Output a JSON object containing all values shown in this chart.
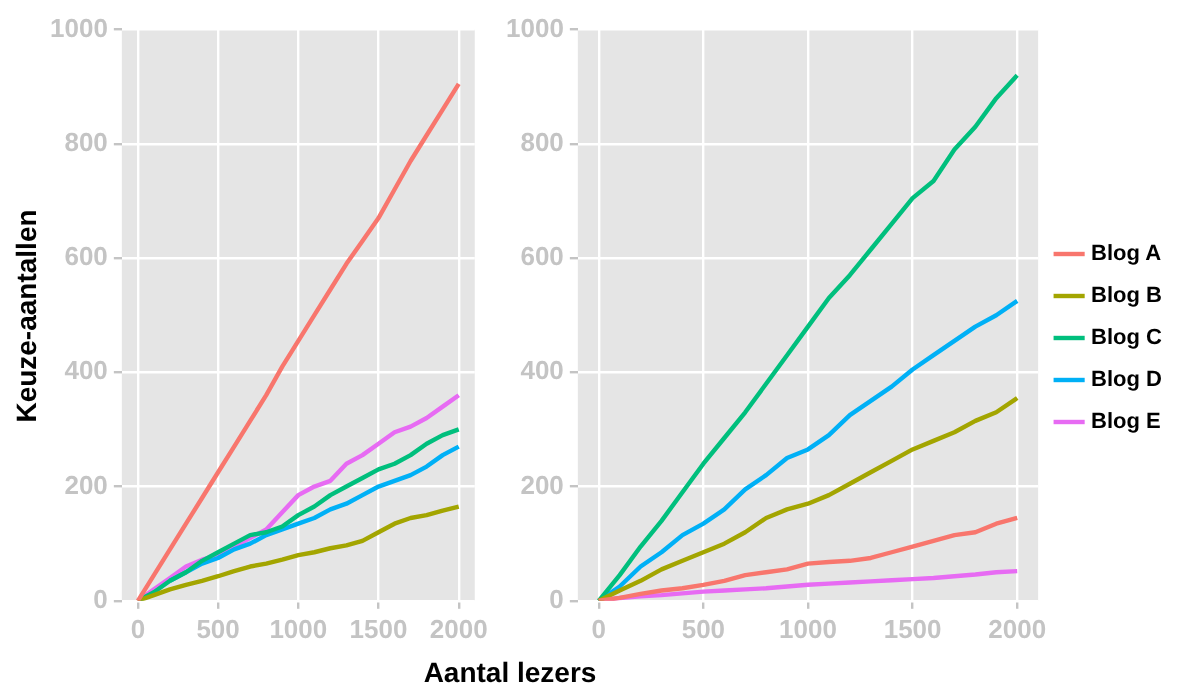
{
  "chart_data": [
    {
      "type": "line",
      "xlabel": "Aantal lezers",
      "ylabel": "Keuze-aantallen",
      "x": [
        0,
        100,
        200,
        300,
        400,
        500,
        600,
        700,
        800,
        900,
        1000,
        1100,
        1200,
        1300,
        1400,
        1500,
        1600,
        1700,
        1800,
        1900,
        2000
      ],
      "xlim": [
        -100,
        2100
      ],
      "xticks": [
        0,
        500,
        1000,
        1500,
        2000
      ],
      "ylim": [
        0,
        1000
      ],
      "yticks": [
        0,
        200,
        400,
        600,
        800,
        1000
      ],
      "grid": true,
      "legend": false,
      "marker": "none",
      "series": [
        {
          "color": "#f8766d",
          "values": [
            0,
            45,
            90,
            135,
            180,
            225,
            270,
            315,
            360,
            410,
            455,
            500,
            545,
            590,
            630,
            670,
            720,
            770,
            815,
            860,
            905
          ]
        },
        {
          "color": "#a3a500",
          "values": [
            0,
            10,
            20,
            28,
            35,
            43,
            52,
            60,
            65,
            72,
            80,
            85,
            92,
            97,
            105,
            120,
            135,
            145,
            150,
            158,
            165
          ]
        },
        {
          "color": "#00bf7d",
          "values": [
            0,
            15,
            35,
            50,
            70,
            85,
            100,
            115,
            120,
            130,
            150,
            165,
            185,
            200,
            215,
            230,
            240,
            255,
            275,
            290,
            300
          ]
        },
        {
          "color": "#00b0f6",
          "values": [
            null,
            null,
            35,
            50,
            65,
            75,
            90,
            100,
            115,
            125,
            135,
            145,
            160,
            170,
            185,
            200,
            210,
            220,
            235,
            255,
            270
          ]
        },
        {
          "color": "#e76bf3",
          "values": [
            0,
            20,
            40,
            60,
            72,
            80,
            95,
            110,
            125,
            155,
            185,
            200,
            210,
            240,
            255,
            275,
            295,
            305,
            320,
            340,
            360
          ]
        }
      ]
    },
    {
      "type": "line",
      "x": [
        0,
        100,
        200,
        300,
        400,
        500,
        600,
        700,
        800,
        900,
        1000,
        1100,
        1200,
        1300,
        1400,
        1500,
        1600,
        1700,
        1800,
        1900,
        2000
      ],
      "xlim": [
        -100,
        2100
      ],
      "xticks": [
        0,
        500,
        1000,
        1500,
        2000
      ],
      "ylim": [
        0,
        1000
      ],
      "yticks": [
        0,
        200,
        400,
        600,
        800,
        1000
      ],
      "grid": true,
      "legend": "right",
      "marker": "none",
      "series": [
        {
          "name": "Blog A",
          "color": "#f8766d",
          "values": [
            0,
            5,
            12,
            18,
            22,
            28,
            35,
            45,
            50,
            55,
            65,
            68,
            70,
            75,
            85,
            95,
            105,
            115,
            120,
            135,
            145
          ]
        },
        {
          "name": "Blog B",
          "color": "#a3a500",
          "values": [
            0,
            18,
            35,
            55,
            70,
            85,
            100,
            120,
            145,
            160,
            170,
            185,
            205,
            225,
            245,
            265,
            280,
            295,
            315,
            330,
            355
          ]
        },
        {
          "name": "Blog C",
          "color": "#00bf7d",
          "values": [
            0,
            45,
            95,
            140,
            190,
            240,
            285,
            330,
            380,
            430,
            480,
            530,
            570,
            615,
            660,
            705,
            735,
            790,
            830,
            880,
            920
          ]
        },
        {
          "name": "Blog D",
          "color": "#00b0f6",
          "values": [
            0,
            25,
            60,
            85,
            115,
            135,
            160,
            195,
            220,
            250,
            265,
            290,
            325,
            350,
            375,
            405,
            430,
            455,
            480,
            500,
            525
          ]
        },
        {
          "name": "Blog E",
          "color": "#e76bf3",
          "values": [
            0,
            5,
            8,
            10,
            13,
            16,
            18,
            20,
            22,
            25,
            28,
            30,
            32,
            34,
            36,
            38,
            40,
            43,
            46,
            50,
            52
          ]
        }
      ]
    }
  ]
}
